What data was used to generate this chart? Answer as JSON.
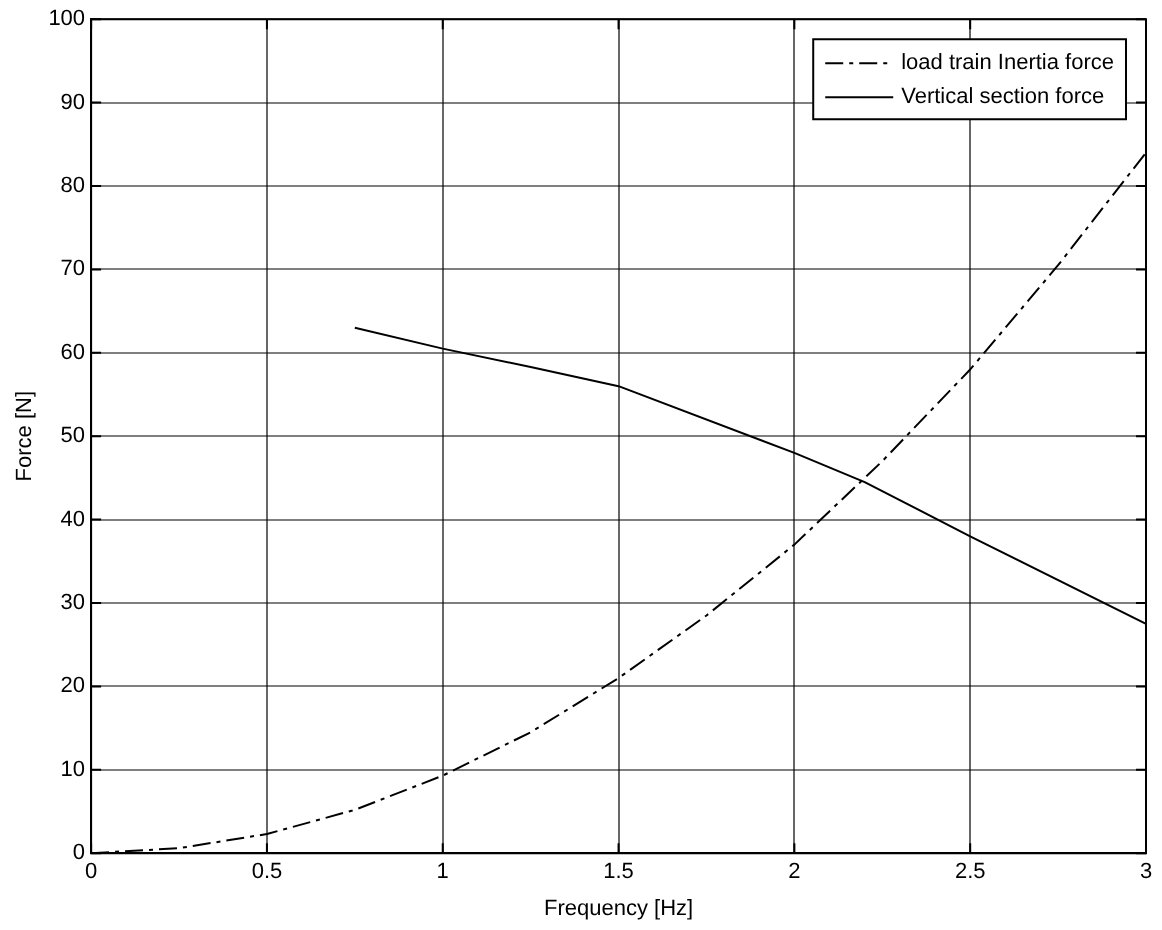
{
  "chart_data": {
    "type": "line",
    "xlabel": "Frequency [Hz]",
    "ylabel": "Force [N]",
    "xlim": [
      0,
      3
    ],
    "xticks": [
      0,
      0.5,
      1,
      1.5,
      2,
      2.5,
      3
    ],
    "ylim": [
      0,
      100
    ],
    "yticks": [
      0,
      10,
      20,
      30,
      40,
      50,
      60,
      70,
      80,
      90,
      100
    ],
    "grid": true,
    "legend": "top right",
    "marker": "none",
    "series": [
      {
        "name": "load train Inertia force",
        "color": "#000000",
        "line_style": "dashed",
        "x": [
          0,
          0.25,
          0.5,
          0.75,
          1,
          1.25,
          1.5,
          1.75,
          2,
          2.25,
          2.5,
          2.75,
          3
        ],
        "values": [
          0,
          0.6,
          2.3,
          5.2,
          9.3,
          14.5,
          21,
          28.5,
          37,
          47,
          58,
          70.5,
          84
        ]
      },
      {
        "name": "Vertical section force",
        "color": "#000000",
        "line_style": "solid",
        "x": [
          0.75,
          1,
          1.25,
          1.5,
          2,
          2.2,
          2.5,
          3
        ],
        "values": [
          63,
          60.5,
          58.3,
          56,
          48,
          44.5,
          38,
          27.5
        ]
      }
    ]
  }
}
